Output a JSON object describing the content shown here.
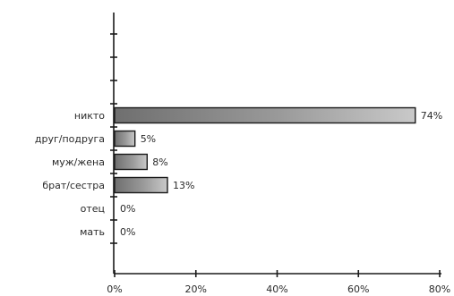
{
  "chart_data": {
    "type": "bar",
    "orientation": "horizontal",
    "categories": [
      "никто",
      "друг/подруга",
      "муж/жена",
      "брат/сестра",
      "отец",
      "мать"
    ],
    "values": [
      74,
      5,
      8,
      13,
      0,
      0
    ],
    "data_labels": [
      "74%",
      "5%",
      "8%",
      "13%",
      "0%",
      "0%"
    ],
    "xlim": [
      0,
      80
    ],
    "x_ticks": [
      0,
      20,
      40,
      60,
      80
    ],
    "x_tick_labels": [
      "0%",
      "20%",
      "40%",
      "60%",
      "80%"
    ],
    "empty_slots_above": 4,
    "bar_color": "#8a8a8a",
    "grid": false,
    "title": "",
    "xlabel": "",
    "ylabel": ""
  }
}
